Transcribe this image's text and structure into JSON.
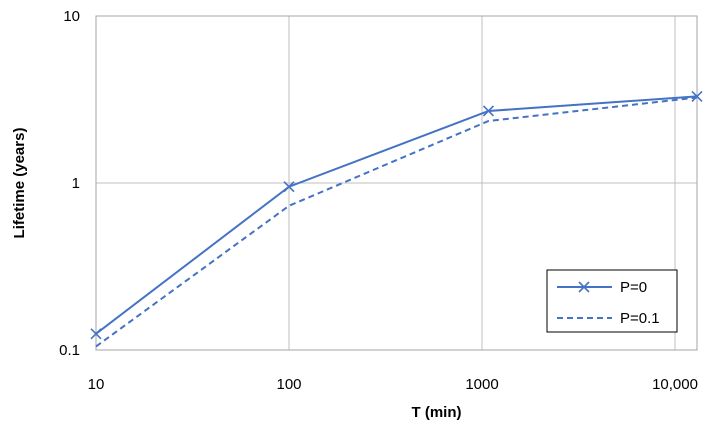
{
  "chart_data": {
    "type": "line",
    "xlabel": "T (min)",
    "ylabel": "Lifetime (years)",
    "x_scale": "log",
    "y_scale": "log",
    "xlim": [
      10,
      13000
    ],
    "ylim": [
      0.1,
      10
    ],
    "x_ticks": [
      {
        "value": 10,
        "label": "10"
      },
      {
        "value": 100,
        "label": "100"
      },
      {
        "value": 1000,
        "label": "1000"
      },
      {
        "value": 10000,
        "label": "10,000"
      }
    ],
    "y_ticks": [
      {
        "value": 0.1,
        "label": "0.1"
      },
      {
        "value": 1,
        "label": "1"
      },
      {
        "value": 10,
        "label": "10"
      }
    ],
    "grid": true,
    "legend_position": "bottom-right",
    "series": [
      {
        "name": "P=0",
        "style": "solid",
        "marker": "x",
        "color": "#4472C4",
        "x": [
          10,
          100,
          1080,
          13000
        ],
        "y": [
          0.125,
          0.95,
          2.7,
          3.3
        ]
      },
      {
        "name": "P=0.1",
        "style": "dashed",
        "marker": "none",
        "color": "#4472C4",
        "x": [
          10,
          100,
          1080,
          13000
        ],
        "y": [
          0.105,
          0.73,
          2.35,
          3.25
        ]
      }
    ]
  }
}
